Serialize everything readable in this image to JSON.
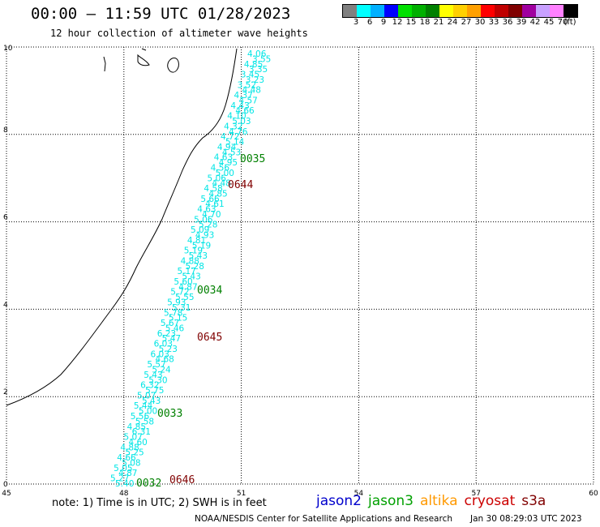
{
  "header": {
    "title": "00:00 – 11:59 UTC 01/28/2023",
    "subtitle": "12 hour collection of altimeter wave heights"
  },
  "colorbar": {
    "swatches": [
      "#808080",
      "#00ffff",
      "#00b0ff",
      "#0000ff",
      "#00e000",
      "#00b000",
      "#008000",
      "#ffff00",
      "#ffd000",
      "#ffa000",
      "#ff0000",
      "#c00000",
      "#800000",
      "#a000a0",
      "#c8a0ff",
      "#ff80ff",
      "#000000"
    ],
    "labels": [
      "3",
      "6",
      "9",
      "12",
      "15",
      "18",
      "21",
      "24",
      "27",
      "30",
      "33",
      "36",
      "39",
      "42",
      "45",
      "70",
      "(ft)"
    ]
  },
  "axes": {
    "x_ticks": [
      "45",
      "48",
      "51",
      "54",
      "57",
      "60"
    ],
    "y_ticks": [
      "0",
      "2",
      "4",
      "6",
      "8",
      "10"
    ]
  },
  "track": {
    "color": "#00e5e5",
    "values": [
      "4.06",
      "3.55",
      "4.85",
      "3.35",
      "3.45",
      "3.23",
      "3.52",
      "4.48",
      "4.37",
      "4.57",
      "4.43",
      "4.66",
      "4.10",
      "5.03",
      "4.32",
      "4.76",
      "4.72",
      "5.14",
      "4.94",
      "4.53",
      "4.63",
      "4.95",
      "4.56",
      "5.00",
      "5.06",
      "4.48",
      "4.58",
      "4.85",
      "5.66",
      "4.61",
      "4.63",
      "4.70",
      "5.06",
      "5.28",
      "5.09",
      "4.93",
      "4.81",
      "5.19",
      "5.19",
      "5.43",
      "4.88",
      "5.28",
      "5.17",
      "5.43",
      "5.60",
      "4.87",
      "5.72",
      "5.55",
      "5.93",
      "5.31",
      "5.78",
      "5.15",
      "5.67",
      "5.46",
      "6.23",
      "5.47",
      "6.03",
      "5.23",
      "6.03",
      "4.68",
      "5.57",
      "5.24",
      "5.43",
      "5.30",
      "6.32",
      "5.75",
      "5.07",
      "5.43",
      "5.44",
      "5.00",
      "5.56",
      "5.58",
      "4.85",
      "6.31",
      "5.07",
      "4.60",
      "4.88",
      "5.25",
      "4.66",
      "5.08",
      "5.05",
      "4.87",
      "5.27",
      "5.40"
    ]
  },
  "timestamps": [
    {
      "text": "0035",
      "color": "#008000"
    },
    {
      "text": "0644",
      "color": "#800000"
    },
    {
      "text": "0034",
      "color": "#008000"
    },
    {
      "text": "0645",
      "color": "#800000"
    },
    {
      "text": "0033",
      "color": "#008000"
    },
    {
      "text": "0646",
      "color": "#800000"
    },
    {
      "text": "0032",
      "color": "#008000"
    }
  ],
  "note": "note: 1) Time is in UTC; 2) SWH is in feet",
  "legend": [
    {
      "name": "jason2",
      "color": "#0000cc"
    },
    {
      "name": "jason3",
      "color": "#00a000"
    },
    {
      "name": "altika",
      "color": "#ff9900"
    },
    {
      "name": "cryosat",
      "color": "#cc0000"
    },
    {
      "name": "s3a",
      "color": "#800000"
    }
  ],
  "credit": "NOAA/NESDIS Center for Satellite Applications and Research",
  "credit_time": "Jan 30 08:29:03 UTC 2023"
}
